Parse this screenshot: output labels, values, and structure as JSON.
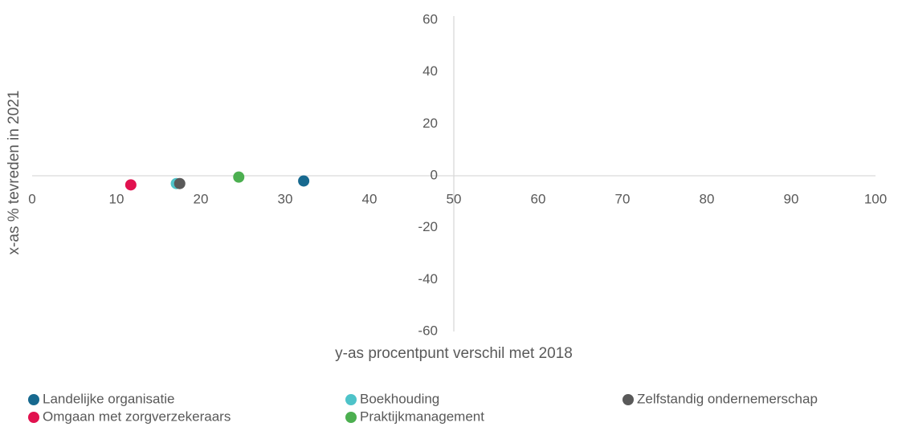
{
  "chart_data": {
    "type": "scatter",
    "x_label": "y-as procentpunt verschil met 2018",
    "y_label": "x-as % tevreden in 2021",
    "xlim": [
      0,
      100
    ],
    "xticks": [
      0,
      10,
      20,
      30,
      40,
      50,
      60,
      70,
      80,
      90,
      100
    ],
    "ylim": [
      -60,
      60
    ],
    "yticks": [
      -60,
      -40,
      -20,
      0,
      20,
      40,
      60
    ],
    "y_axis_at": 50,
    "grid": false,
    "legend": "bottom",
    "series": [
      {
        "name": "Landelijke organisatie",
        "color": "#17698f",
        "x": [
          32.2
        ],
        "y": [
          -2
        ]
      },
      {
        "name": "Boekhouding",
        "color": "#4ec3c9",
        "x": [
          17.1
        ],
        "y": [
          -3
        ]
      },
      {
        "name": "Zelfstandig ondernemerschap",
        "color": "#595959",
        "x": [
          17.5
        ],
        "y": [
          -3
        ]
      },
      {
        "name": "Omgaan met zorgverzekeraars",
        "color": "#e1124f",
        "x": [
          11.7
        ],
        "y": [
          -3.5
        ]
      },
      {
        "name": "Praktijkmanagement",
        "color": "#4caf50",
        "x": [
          24.5
        ],
        "y": [
          -0.5
        ]
      }
    ]
  }
}
